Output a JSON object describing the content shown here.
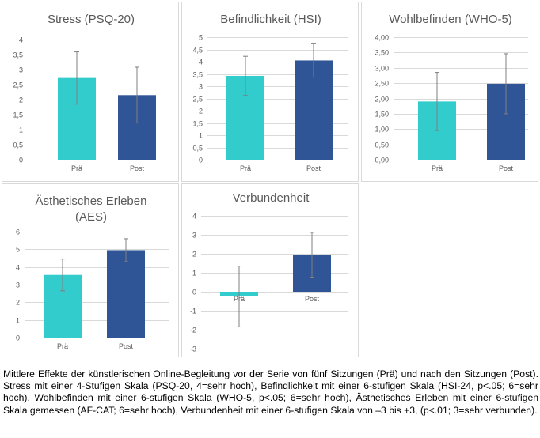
{
  "chart_data": [
    {
      "type": "bar",
      "title_lines": [
        "Stress (PSQ-20)"
      ],
      "categories": [
        "Prä",
        "Post"
      ],
      "values": [
        2.72,
        2.15
      ],
      "errors": [
        0.87,
        0.93
      ],
      "ylim": [
        0,
        4
      ],
      "yticks": [
        "0",
        "0,5",
        "1",
        "1,5",
        "2",
        "2,5",
        "3",
        "3,5",
        "4"
      ],
      "colors": [
        "#33cccc",
        "#2f5597"
      ],
      "grid": true
    },
    {
      "type": "bar",
      "title_lines": [
        "Befindlichkeit (HSI)"
      ],
      "categories": [
        "Prä",
        "Post"
      ],
      "values": [
        3.42,
        4.05
      ],
      "errors": [
        0.8,
        0.68
      ],
      "ylim": [
        0,
        5
      ],
      "yticks": [
        "0",
        "0,5",
        "1",
        "1,5",
        "2",
        "2,5",
        "3",
        "3,5",
        "4",
        "4,5",
        "5"
      ],
      "colors": [
        "#33cccc",
        "#2f5597"
      ],
      "grid": true
    },
    {
      "type": "bar",
      "title_lines": [
        "Wohlbefinden (WHO-5)"
      ],
      "categories": [
        "Prä",
        "Post"
      ],
      "values": [
        1.9,
        2.48
      ],
      "errors": [
        0.95,
        0.98
      ],
      "ylim": [
        0,
        4
      ],
      "yticks": [
        "0,00",
        "0,50",
        "1,00",
        "1,50",
        "2,00",
        "2,50",
        "3,00",
        "3,50",
        "4,00"
      ],
      "colors": [
        "#33cccc",
        "#2f5597"
      ],
      "grid": true
    },
    {
      "type": "bar",
      "title_lines": [
        "Ästhetisches Erleben",
        "(AES)"
      ],
      "categories": [
        "Prä",
        "Post"
      ],
      "values": [
        3.55,
        4.95
      ],
      "errors": [
        0.9,
        0.65
      ],
      "ylim": [
        0,
        6
      ],
      "yticks": [
        "0",
        "1",
        "2",
        "3",
        "4",
        "5",
        "6"
      ],
      "colors": [
        "#33cccc",
        "#2f5597"
      ],
      "grid": true
    },
    {
      "type": "bar",
      "title_lines": [
        "Verbundenheit"
      ],
      "categories": [
        "Prä",
        "Post"
      ],
      "values": [
        -0.25,
        1.95
      ],
      "errors": [
        1.6,
        1.18
      ],
      "ylim": [
        -3,
        4
      ],
      "yticks": [
        "-3",
        "-2",
        "-1",
        "0",
        "1",
        "2",
        "3",
        "4"
      ],
      "colors": [
        "#33cccc",
        "#2f5597"
      ],
      "grid": true
    }
  ],
  "caption": "Mittlere Effekte der künstlerischen Online-Begleitung vor der Serie von fünf Sitzungen (Prä) und nach den Sitzungen (Post). Stress mit einer 4-Stufigen Skala (PSQ-20, 4=sehr hoch), Befindlichkeit mit einer 6-stufigen Skala (HSI-24, p<.05; 6=sehr hoch), Wohlbefinden mit einer 6-stufigen Skala (WHO-5, p<.05; 6=sehr hoch), Ästhetisches Erleben mit einer 6-stufigen Skala gemessen (AF-CAT; 6=sehr hoch), Verbundenheit mit einer 6-stufigen Skala von –3 bis +3, (p<.01; 3=sehr verbunden)."
}
